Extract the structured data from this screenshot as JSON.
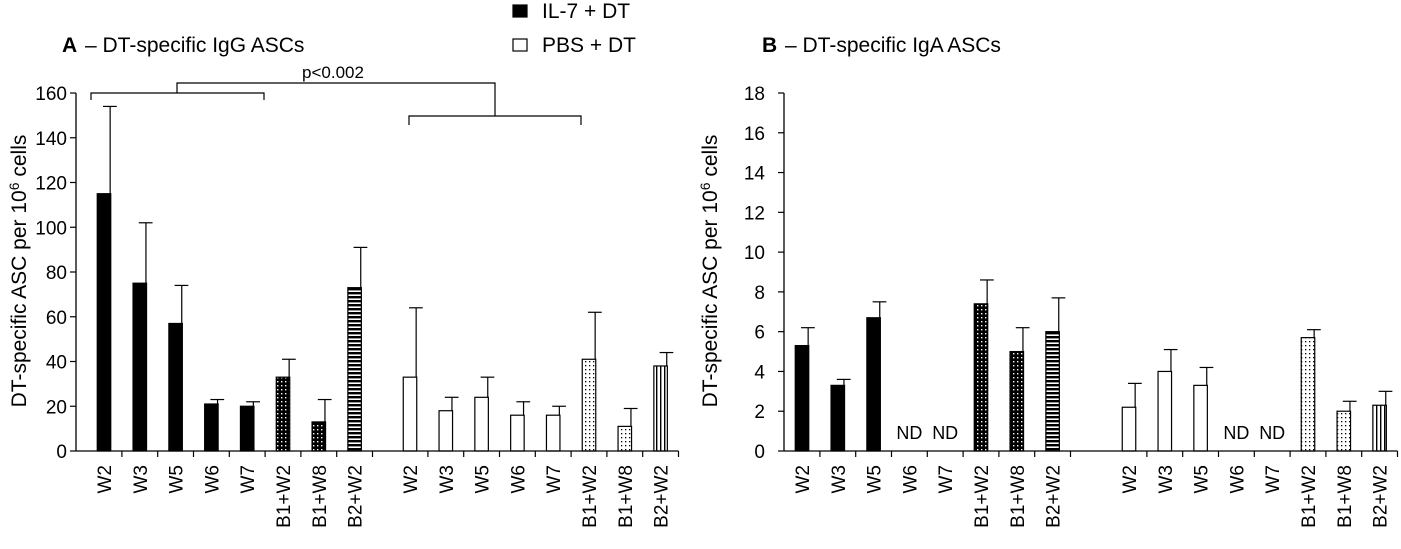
{
  "legend": [
    {
      "name": "IL-7 + DT",
      "pattern": "solid"
    },
    {
      "name": "PBS + DT",
      "pattern": "open"
    }
  ],
  "colors": {
    "ink": "#000000",
    "background": "#ffffff"
  },
  "chart_data": [
    {
      "type": "bar",
      "panel": "A",
      "title": "– DT-specific IgG ASCs",
      "ylabel_main": "DT-specific ASC per 10",
      "ylabel_sup": "6",
      "ylabel_tail": " cells",
      "ylim": [
        0,
        160
      ],
      "yticks": [
        "0",
        "20",
        "40",
        "60",
        "80",
        "100",
        "120",
        "140",
        "160"
      ],
      "annotation": "p<0.002",
      "groups": [
        {
          "name": "IL-7 + DT",
          "categories": [
            "W2",
            "W3",
            "W5",
            "W6",
            "W7",
            "B1+W2",
            "B1+W8",
            "B2+W2"
          ],
          "values": [
            115,
            75,
            57,
            21,
            20,
            33,
            13,
            73
          ],
          "errors": [
            39,
            27,
            17,
            2,
            2,
            8,
            10,
            18
          ],
          "patterns": [
            "solid",
            "solid",
            "solid",
            "solid",
            "solid",
            "dots",
            "dots",
            "hstripe"
          ],
          "nd_labels": [
            "",
            "",
            "",
            "",
            "",
            "",
            "",
            ""
          ]
        },
        {
          "name": "PBS + DT",
          "categories": [
            "W2",
            "W3",
            "W5",
            "W6",
            "W7",
            "B1+W2",
            "B1+W8",
            "B2+W2"
          ],
          "values": [
            33,
            18,
            24,
            16,
            16,
            41,
            11,
            38
          ],
          "errors": [
            31,
            6,
            9,
            6,
            4,
            21,
            8,
            6
          ],
          "patterns": [
            "open",
            "open",
            "open",
            "open",
            "open",
            "lightdots",
            "lightdots",
            "vstripe"
          ],
          "nd_labels": [
            "",
            "",
            "",
            "",
            "",
            "",
            "",
            ""
          ]
        }
      ]
    },
    {
      "type": "bar",
      "panel": "B",
      "title": "– DT-specific IgA ASCs",
      "ylabel_main": "DT-specific ASC per 10",
      "ylabel_sup": "6",
      "ylabel_tail": " cells",
      "ylim": [
        0,
        18
      ],
      "yticks": [
        "0",
        "2",
        "4",
        "6",
        "8",
        "10",
        "12",
        "14",
        "16",
        "18"
      ],
      "groups": [
        {
          "name": "IL-7 + DT",
          "categories": [
            "W2",
            "W3",
            "W5",
            "W6",
            "W7",
            "B1+W2",
            "B1+W8",
            "B2+W2"
          ],
          "values": [
            5.3,
            3.3,
            6.7,
            0,
            0,
            7.4,
            5.0,
            6.0
          ],
          "errors": [
            0.9,
            0.3,
            0.8,
            0,
            0,
            1.2,
            1.2,
            1.7
          ],
          "patterns": [
            "solid",
            "solid",
            "solid",
            "none",
            "none",
            "dots",
            "dots",
            "hstripe"
          ],
          "nd_labels": [
            "",
            "",
            "",
            "ND",
            "ND",
            "",
            "",
            ""
          ]
        },
        {
          "name": "PBS + DT",
          "categories": [
            "W2",
            "W3",
            "W5",
            "W6",
            "W7",
            "B1+W2",
            "B1+W8",
            "B2+W2"
          ],
          "values": [
            2.2,
            4.0,
            3.3,
            0,
            0,
            5.7,
            2.0,
            2.3
          ],
          "errors": [
            1.2,
            1.1,
            0.9,
            0,
            0,
            0.4,
            0.5,
            0.7
          ],
          "patterns": [
            "open",
            "open",
            "open",
            "none",
            "none",
            "lightdots",
            "lightdots",
            "vstripe"
          ],
          "nd_labels": [
            "",
            "",
            "",
            "ND",
            "ND",
            "",
            "",
            ""
          ]
        }
      ]
    }
  ]
}
